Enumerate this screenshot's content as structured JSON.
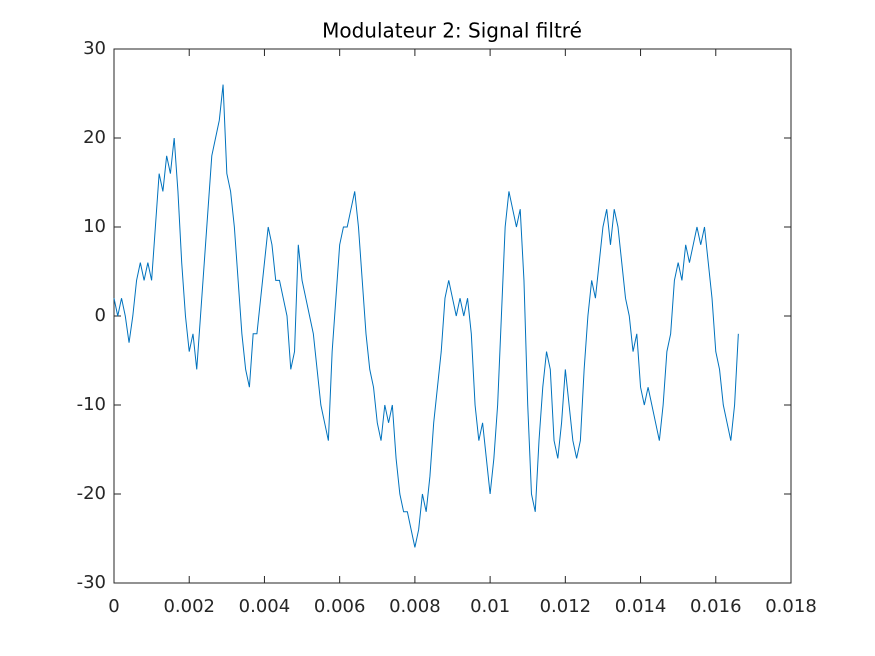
{
  "chart_data": {
    "type": "line",
    "title": "Modulateur 2: Signal filtré",
    "x": [
      0,
      0.0001,
      0.0002,
      0.0003,
      0.0004,
      0.0005,
      0.0006,
      0.0007,
      0.0008,
      0.0009,
      0.001,
      0.0011,
      0.0012,
      0.0013,
      0.0014,
      0.0015,
      0.0016,
      0.0017,
      0.0018,
      0.0019,
      0.002,
      0.0021,
      0.0022,
      0.0023,
      0.0024,
      0.0025,
      0.0026,
      0.0027,
      0.0028,
      0.0029,
      0.003,
      0.0031,
      0.0032,
      0.0033,
      0.0034,
      0.0035,
      0.0036,
      0.0037,
      0.0038,
      0.0039,
      0.004,
      0.0041,
      0.0042,
      0.0043,
      0.0044,
      0.0045,
      0.0046,
      0.0047,
      0.0048,
      0.0049,
      0.005,
      0.0051,
      0.0052,
      0.0053,
      0.0054,
      0.0055,
      0.0056,
      0.0057,
      0.0058,
      0.0059,
      0.006,
      0.0061,
      0.0062,
      0.0063,
      0.0064,
      0.0065,
      0.0066,
      0.0067,
      0.0068,
      0.0069,
      0.007,
      0.0071,
      0.0072,
      0.0073,
      0.0074,
      0.0075,
      0.0076,
      0.0077,
      0.0078,
      0.0079,
      0.008,
      0.0081,
      0.0082,
      0.0083,
      0.0084,
      0.0085,
      0.0086,
      0.0087,
      0.0088,
      0.0089,
      0.009,
      0.0091,
      0.0092,
      0.0093,
      0.0094,
      0.0095,
      0.0096,
      0.0097,
      0.0098,
      0.0099,
      0.01,
      0.0101,
      0.0102,
      0.0103,
      0.0104,
      0.0105,
      0.0106,
      0.0107,
      0.0108,
      0.0109,
      0.011,
      0.0111,
      0.0112,
      0.0113,
      0.0114,
      0.0115,
      0.0116,
      0.0117,
      0.0118,
      0.0119,
      0.012,
      0.0121,
      0.0122,
      0.0123,
      0.0124,
      0.0125,
      0.0126,
      0.0127,
      0.0128,
      0.0129,
      0.013,
      0.0131,
      0.0132,
      0.0133,
      0.0134,
      0.0135,
      0.0136,
      0.0137,
      0.0138,
      0.0139,
      0.014,
      0.0141,
      0.0142,
      0.0143,
      0.0144,
      0.0145,
      0.0146,
      0.0147,
      0.0148,
      0.0149,
      0.015,
      0.0151,
      0.0152,
      0.0153,
      0.0154,
      0.0155,
      0.0156,
      0.0157,
      0.0158,
      0.0159,
      0.016,
      0.0161,
      0.0162,
      0.0163,
      0.0164,
      0.0165,
      0.0166
    ],
    "series": [
      {
        "color": "#0072bd",
        "values": [
          2,
          0,
          2,
          0,
          -3,
          0,
          4,
          6,
          4,
          6,
          4,
          10,
          16,
          14,
          18,
          16,
          20,
          14,
          6,
          0,
          -4,
          -2,
          -6,
          0,
          6,
          12,
          18,
          20,
          22,
          26,
          16,
          14,
          10,
          4,
          -2,
          -6,
          -8,
          -2,
          -2,
          2,
          6,
          10,
          8,
          4,
          4,
          2,
          0,
          -6,
          -4,
          8,
          4,
          2,
          0,
          -2,
          -6,
          -10,
          -12,
          -14,
          -4,
          2,
          8,
          10,
          10,
          12,
          14,
          10,
          4,
          -2,
          -6,
          -8,
          -12,
          -14,
          -10,
          -12,
          -10,
          -16,
          -20,
          -22,
          -22,
          -24,
          -26,
          -24,
          -20,
          -22,
          -18,
          -12,
          -8,
          -4,
          2,
          4,
          2,
          0,
          2,
          0,
          2,
          -2,
          -10,
          -14,
          -12,
          -16,
          -20,
          -16,
          -10,
          0,
          10,
          14,
          12,
          10,
          12,
          4,
          -10,
          -20,
          -22,
          -14,
          -8,
          -4,
          -6,
          -14,
          -16,
          -12,
          -6,
          -10,
          -14,
          -16,
          -14,
          -6,
          0,
          4,
          2,
          6,
          10,
          12,
          8,
          12,
          10,
          6,
          2,
          0,
          -4,
          -2,
          -8,
          -10,
          -8,
          -10,
          -12,
          -14,
          -10,
          -4,
          -2,
          4,
          6,
          4,
          8,
          6,
          8,
          10,
          8,
          10,
          6,
          2,
          -4,
          -6,
          -10,
          -12,
          -14,
          -10,
          -2
        ]
      }
    ],
    "xlim": [
      0,
      0.018
    ],
    "xticks": [
      0,
      0.002,
      0.004,
      0.006,
      0.008,
      0.01,
      0.012,
      0.014,
      0.016,
      0.018
    ],
    "ylim": [
      -30,
      30
    ],
    "yticks": [
      -30,
      -20,
      -10,
      0,
      10,
      20,
      30
    ]
  }
}
